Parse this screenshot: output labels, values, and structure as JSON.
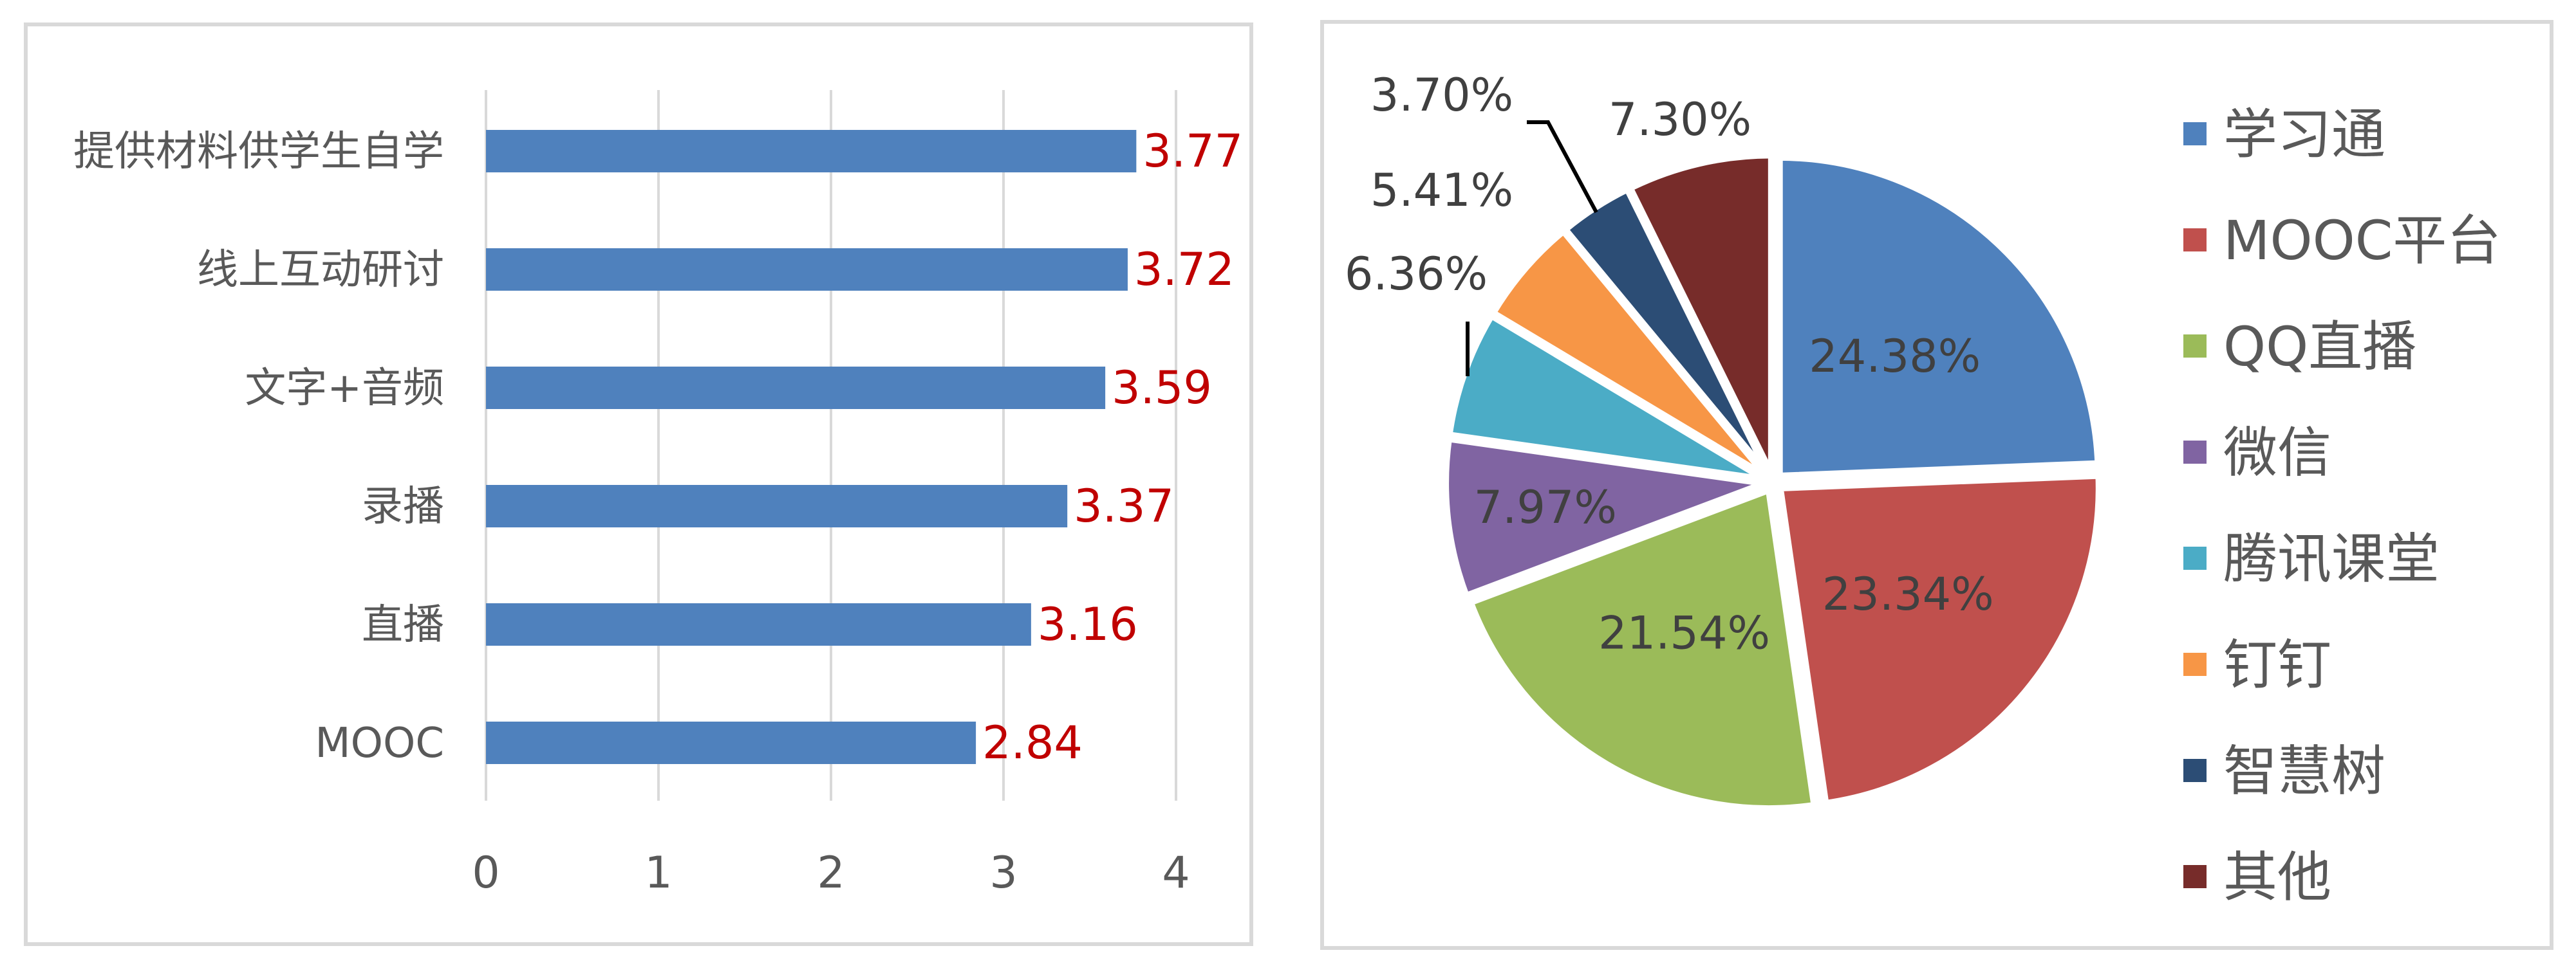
{
  "chart_data": [
    {
      "type": "bar",
      "orientation": "horizontal",
      "categories": [
        "提供材料供学生自学",
        "线上互动研讨",
        "文字+音频",
        "录播",
        "直播",
        "MOOC"
      ],
      "values": [
        3.77,
        3.72,
        3.59,
        3.37,
        3.16,
        2.84
      ],
      "value_labels": [
        "3.77",
        "3.72",
        "3.59",
        "3.37",
        "3.16",
        "2.84"
      ],
      "xlim": [
        0,
        4
      ],
      "x_ticks": [
        "0",
        "1",
        "2",
        "3",
        "4"
      ],
      "grid": true,
      "colors": {
        "bar": "#4f81bd",
        "value_label": "#c00000"
      }
    },
    {
      "type": "pie",
      "categories": [
        "学习通",
        "MOOC平台",
        "QQ直播",
        "微信",
        "腾讯课堂",
        "钉钉",
        "智慧树",
        "其他"
      ],
      "values": [
        24.38,
        23.34,
        21.54,
        7.97,
        6.36,
        5.41,
        3.7,
        7.3
      ],
      "value_labels": [
        "24.38%",
        "23.34%",
        "21.54%",
        "7.97%",
        "6.36%",
        "5.41%",
        "3.70%",
        "7.30%"
      ],
      "colors": [
        "#4f81bd",
        "#c0504d",
        "#9bbb59",
        "#8064a2",
        "#4bacc6",
        "#f79646",
        "#2c4d75",
        "#772c2a"
      ],
      "legend": "right"
    }
  ]
}
